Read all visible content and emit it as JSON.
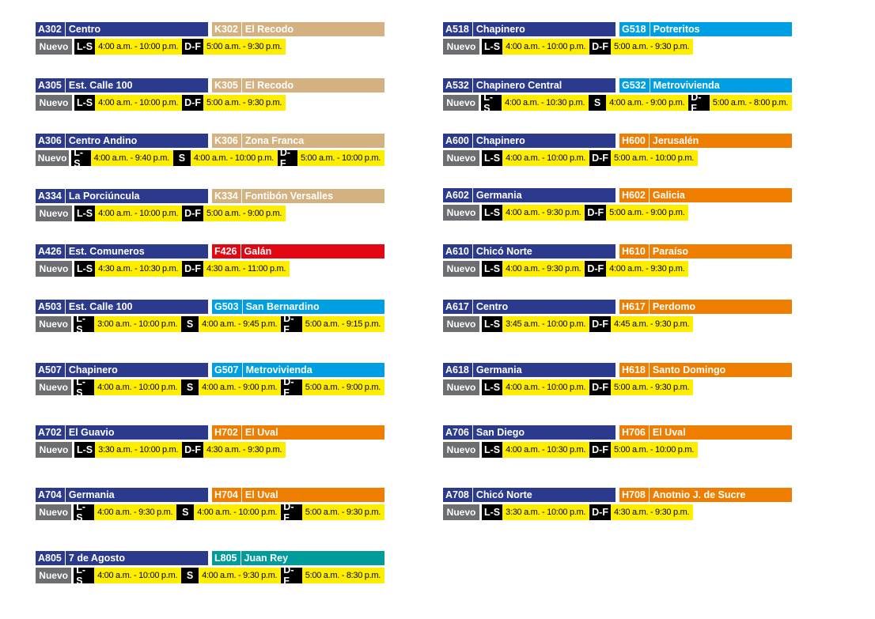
{
  "colors": {
    "A": "#2b3a8c",
    "K": "#d4b180",
    "F": "#e30613",
    "G": "#009fe3",
    "H": "#ef7d00",
    "L": "#009c9c",
    "nuevo": "#6d6e71",
    "day": "#000000",
    "hours": "#ffed00"
  },
  "nuevo_label": "Nuevo",
  "left": [
    {
      "a_code": "A302",
      "a_name": "Centro",
      "b_code": "K302",
      "b_name": "El Recodo",
      "b_color": "K",
      "schedule": [
        {
          "day": "L-S",
          "hours": "4:00 a.m. - 10:00 p.m."
        },
        {
          "day": "D-F",
          "hours": "5:00 a.m. - 9:30 p.m."
        }
      ]
    },
    {
      "a_code": "A305",
      "a_name": "Est. Calle 100",
      "b_code": "K305",
      "b_name": "El Recodo",
      "b_color": "K",
      "schedule": [
        {
          "day": "L-S",
          "hours": "4:00 a.m. - 10:00 p.m."
        },
        {
          "day": "D-F",
          "hours": "5:00 a.m. - 9:30 p.m."
        }
      ]
    },
    {
      "a_code": "A306",
      "a_name": "Centro Andino",
      "b_code": "K306",
      "b_name": "Zona Franca",
      "b_color": "K",
      "schedule": [
        {
          "day": "L-S",
          "hours": "4:00 a.m. - 9:40 p.m."
        },
        {
          "day": "S",
          "hours": "4:00 a.m. - 10:00 p.m."
        },
        {
          "day": "D-F",
          "hours": "5:00 a.m. - 10:00 p.m."
        }
      ]
    },
    {
      "a_code": "A334",
      "a_name": "La Porciúncula",
      "b_code": "K334",
      "b_name": "Fontibón Versalles",
      "b_color": "K",
      "schedule": [
        {
          "day": "L-S",
          "hours": "4:00 a.m. - 10:00 p.m."
        },
        {
          "day": "D-F",
          "hours": "5:00 a.m. - 9:00 p.m."
        }
      ]
    },
    {
      "a_code": "A426",
      "a_name": "Est. Comuneros",
      "b_code": "F426",
      "b_name": "Galán",
      "b_color": "F",
      "schedule": [
        {
          "day": "L-S",
          "hours": "4:30 a.m. - 10:30 p.m."
        },
        {
          "day": "D-F",
          "hours": "4:30 a.m. - 11:00 p.m."
        }
      ]
    },
    {
      "a_code": "A503",
      "a_name": "Est. Calle 100",
      "b_code": "G503",
      "b_name": "San Bernardino",
      "b_color": "G",
      "schedule": [
        {
          "day": "L-S",
          "hours": "3:00 a.m. - 10:00 p.m."
        },
        {
          "day": "S",
          "hours": "4:00 a.m. - 9:45 p.m."
        },
        {
          "day": "D-F",
          "hours": "5:00 a.m. - 9:15 p.m."
        }
      ]
    },
    {
      "a_code": "A507",
      "a_name": "Chapinero",
      "b_code": "G507",
      "b_name": "Metrovivienda",
      "b_color": "G",
      "schedule": [
        {
          "day": "L-S",
          "hours": "4:00 a.m. - 10:00 p.m."
        },
        {
          "day": "S",
          "hours": "4:00 a.m. - 9:00 p.m."
        },
        {
          "day": "D-F",
          "hours": "5:00 a.m. - 9:00 p.m."
        }
      ]
    },
    {
      "a_code": "A702",
      "a_name": "El Guavio",
      "b_code": "H702",
      "b_name": "El Uval",
      "b_color": "H",
      "schedule": [
        {
          "day": "L-S",
          "hours": "3:30 a.m. - 10:00 p.m."
        },
        {
          "day": "D-F",
          "hours": "4:30 a.m. - 9:30 p.m."
        }
      ]
    },
    {
      "a_code": "A704",
      "a_name": "Germania",
      "b_code": "H704",
      "b_name": "El Uval",
      "b_color": "H",
      "schedule": [
        {
          "day": "L-S",
          "hours": "4:00 a.m. - 9:30 p.m."
        },
        {
          "day": "S",
          "hours": "4:00 a.m. - 10:00 p.m."
        },
        {
          "day": "D-F",
          "hours": "5:00 a.m. - 9:30 p.m."
        }
      ]
    },
    {
      "a_code": "A805",
      "a_name": "7 de Agosto",
      "b_code": "L805",
      "b_name": "Juan Rey",
      "b_color": "L",
      "schedule": [
        {
          "day": "L-S",
          "hours": "4:00 a.m. - 10:00 p.m."
        },
        {
          "day": "S",
          "hours": "4:00 a.m. - 9:30 p.m."
        },
        {
          "day": "D-F",
          "hours": "5:00 a.m. - 8:30 p.m."
        }
      ]
    }
  ],
  "right": [
    {
      "a_code": "A518",
      "a_name": "Chapinero",
      "b_code": "G518",
      "b_name": "Potreritos",
      "b_color": "G",
      "schedule": [
        {
          "day": "L-S",
          "hours": "4:00 a.m. - 10:00 p.m."
        },
        {
          "day": "D-F",
          "hours": "5:00 a.m. - 9:30 p.m."
        }
      ]
    },
    {
      "a_code": "A532",
      "a_name": "Chapinero Central",
      "b_code": "G532",
      "b_name": "Metrovivienda",
      "b_color": "G",
      "schedule": [
        {
          "day": "L-S",
          "hours": "4:00 a.m. - 10:30 p.m."
        },
        {
          "day": "S",
          "hours": "4:00 a.m. - 9:00 p.m."
        },
        {
          "day": "D-F",
          "hours": "5:00 a.m. - 8:00 p.m."
        }
      ]
    },
    {
      "a_code": "A600",
      "a_name": "Chapinero",
      "b_code": "H600",
      "b_name": "Jerusalén",
      "b_color": "H",
      "schedule": [
        {
          "day": "L-S",
          "hours": "4:00 a.m. - 10:00 p.m."
        },
        {
          "day": "D-F",
          "hours": "5:00 a.m. - 10:00 p.m."
        }
      ]
    },
    {
      "a_code": "A602",
      "a_name": "Germania",
      "b_code": "H602",
      "b_name": "Galicia",
      "b_color": "H",
      "schedule": [
        {
          "day": "L-S",
          "hours": "4:00 a.m. - 9:30 p.m."
        },
        {
          "day": "D-F",
          "hours": "5:00 a.m. - 9:00 p.m."
        }
      ]
    },
    {
      "a_code": "A610",
      "a_name": "Chicó Norte",
      "b_code": "H610",
      "b_name": "Paraíso",
      "b_color": "H",
      "schedule": [
        {
          "day": "L-S",
          "hours": "4:00 a.m. - 9:30 p.m."
        },
        {
          "day": "D-F",
          "hours": "4:00 a.m. - 9:30 p.m."
        }
      ]
    },
    {
      "a_code": "A617",
      "a_name": "Centro",
      "b_code": "H617",
      "b_name": "Perdomo",
      "b_color": "H",
      "schedule": [
        {
          "day": "L-S",
          "hours": "3:45 a.m. - 10:00 p.m."
        },
        {
          "day": "D-F",
          "hours": "4:45 a.m. - 9:30 p.m."
        }
      ]
    },
    {
      "a_code": "A618",
      "a_name": "Germania",
      "b_code": "H618",
      "b_name": "Santo Domingo",
      "b_color": "H",
      "schedule": [
        {
          "day": "L-S",
          "hours": "4:00 a.m. - 10:00 p.m."
        },
        {
          "day": "D-F",
          "hours": "5:00 a.m. - 9:30 p.m."
        }
      ]
    },
    {
      "a_code": "A706",
      "a_name": "San Diego",
      "b_code": "H706",
      "b_name": "El Uval",
      "b_color": "H",
      "schedule": [
        {
          "day": "L-S",
          "hours": "4:00 a.m. - 10:30 p.m."
        },
        {
          "day": "D-F",
          "hours": "5:00 a.m. - 10:00 p.m."
        }
      ]
    },
    {
      "a_code": "A708",
      "a_name": "Chicó Norte",
      "b_code": "H708",
      "b_name": "Anotnio J. de Sucre",
      "b_color": "H",
      "schedule": [
        {
          "day": "L-S",
          "hours": "3:30 a.m. - 10:00 p.m."
        },
        {
          "day": "D-F",
          "hours": "4:30 a.m. - 9:30 p.m."
        }
      ]
    }
  ]
}
